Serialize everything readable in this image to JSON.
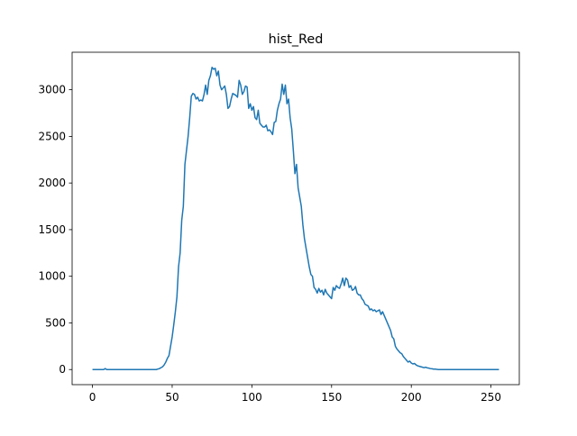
{
  "chart_data": {
    "type": "line",
    "title": "hist_Red",
    "color": "#1f77b4",
    "x": [
      0,
      1,
      2,
      3,
      4,
      5,
      6,
      7,
      8,
      9,
      10,
      11,
      12,
      13,
      14,
      15,
      16,
      17,
      18,
      19,
      20,
      21,
      22,
      23,
      24,
      25,
      26,
      27,
      28,
      29,
      30,
      31,
      32,
      33,
      34,
      35,
      36,
      37,
      38,
      39,
      40,
      41,
      42,
      43,
      44,
      45,
      46,
      47,
      48,
      49,
      50,
      51,
      52,
      53,
      54,
      55,
      56,
      57,
      58,
      59,
      60,
      61,
      62,
      63,
      64,
      65,
      66,
      67,
      68,
      69,
      70,
      71,
      72,
      73,
      74,
      75,
      76,
      77,
      78,
      79,
      80,
      81,
      82,
      83,
      84,
      85,
      86,
      87,
      88,
      89,
      90,
      91,
      92,
      93,
      94,
      95,
      96,
      97,
      98,
      99,
      100,
      101,
      102,
      103,
      104,
      105,
      106,
      107,
      108,
      109,
      110,
      111,
      112,
      113,
      114,
      115,
      116,
      117,
      118,
      119,
      120,
      121,
      122,
      123,
      124,
      125,
      126,
      127,
      128,
      129,
      130,
      131,
      132,
      133,
      134,
      135,
      136,
      137,
      138,
      139,
      140,
      141,
      142,
      143,
      144,
      145,
      146,
      147,
      148,
      149,
      150,
      151,
      152,
      153,
      154,
      155,
      156,
      157,
      158,
      159,
      160,
      161,
      162,
      163,
      164,
      165,
      166,
      167,
      168,
      169,
      170,
      171,
      172,
      173,
      174,
      175,
      176,
      177,
      178,
      179,
      180,
      181,
      182,
      183,
      184,
      185,
      186,
      187,
      188,
      189,
      190,
      191,
      192,
      193,
      194,
      195,
      196,
      197,
      198,
      199,
      200,
      201,
      202,
      203,
      204,
      205,
      206,
      207,
      208,
      209,
      210,
      211,
      212,
      213,
      214,
      215,
      216,
      217,
      218,
      219,
      220,
      221,
      222,
      223,
      224,
      225,
      226,
      227,
      228,
      229,
      230,
      231,
      232,
      233,
      234,
      235,
      236,
      237,
      238,
      239,
      240,
      241,
      242,
      243,
      244,
      245,
      246,
      247,
      248,
      249,
      250,
      251,
      252,
      253,
      254,
      255
    ],
    "values": [
      0,
      0,
      0,
      0,
      0,
      0,
      0,
      0,
      10,
      0,
      0,
      0,
      0,
      0,
      0,
      0,
      0,
      0,
      0,
      0,
      0,
      0,
      0,
      0,
      0,
      0,
      0,
      0,
      0,
      0,
      0,
      0,
      0,
      0,
      0,
      0,
      0,
      0,
      0,
      0,
      0,
      5,
      10,
      20,
      30,
      50,
      80,
      120,
      150,
      250,
      350,
      480,
      620,
      780,
      1100,
      1250,
      1600,
      1750,
      2200,
      2350,
      2500,
      2700,
      2930,
      2960,
      2950,
      2900,
      2920,
      2880,
      2890,
      2880,
      2950,
      3050,
      2950,
      3100,
      3150,
      3240,
      3220,
      3230,
      3150,
      3200,
      3050,
      3000,
      3020,
      3040,
      2950,
      2800,
      2820,
      2900,
      2960,
      2950,
      2940,
      2920,
      3100,
      3050,
      2950,
      2980,
      3040,
      3030,
      2800,
      2850,
      2780,
      2820,
      2700,
      2680,
      2780,
      2640,
      2620,
      2600,
      2600,
      2620,
      2560,
      2570,
      2550,
      2520,
      2650,
      2660,
      2780,
      2850,
      2900,
      3060,
      2950,
      3050,
      2850,
      2900,
      2700,
      2580,
      2350,
      2100,
      2200,
      1950,
      1850,
      1750,
      1550,
      1400,
      1300,
      1200,
      1100,
      1020,
      1000,
      880,
      860,
      820,
      870,
      830,
      850,
      800,
      860,
      820,
      800,
      780,
      760,
      880,
      850,
      900,
      880,
      870,
      920,
      980,
      900,
      980,
      960,
      880,
      900,
      850,
      860,
      890,
      820,
      800,
      800,
      760,
      740,
      700,
      690,
      680,
      640,
      650,
      630,
      640,
      620,
      630,
      640,
      590,
      620,
      580,
      540,
      500,
      460,
      420,
      350,
      330,
      250,
      220,
      200,
      180,
      170,
      140,
      120,
      100,
      80,
      90,
      70,
      60,
      65,
      50,
      40,
      35,
      30,
      25,
      20,
      25,
      18,
      15,
      10,
      8,
      5,
      5,
      2,
      0,
      0,
      0,
      0,
      0,
      0,
      0,
      0,
      0,
      0,
      0,
      0,
      0,
      0,
      0,
      0,
      0,
      0,
      0,
      0,
      0,
      0,
      0,
      0,
      0,
      0,
      0,
      0,
      0,
      0,
      0,
      0,
      0,
      0,
      0,
      0,
      0,
      0,
      0
    ],
    "xlim": [
      -12.75,
      267.75
    ],
    "xticks": [
      0,
      50,
      100,
      150,
      200,
      250
    ],
    "ylim": [
      -162,
      3402
    ],
    "yticks": [
      0,
      500,
      1000,
      1500,
      2000,
      2500,
      3000
    ]
  }
}
